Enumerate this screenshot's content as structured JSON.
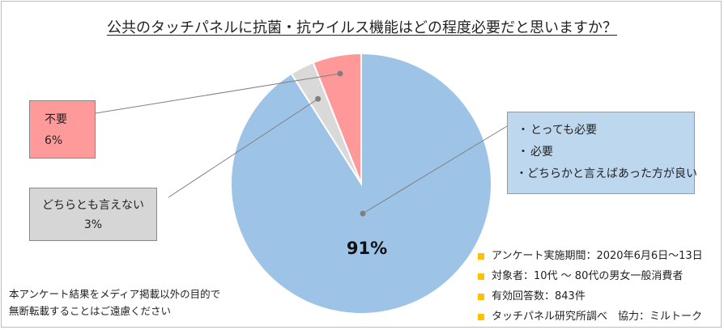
{
  "chart_data": {
    "type": "pie",
    "title": "公共のタッチパネルに抗菌・抗ウイルス機能はどの程度必要だと思いますか？",
    "slices": [
      {
        "key": "necessary",
        "value": 91,
        "value_label": "91%",
        "color": "#9dc3e6",
        "items": [
          "とっても必要",
          "必要",
          "どちらかと言えばあった方が良い"
        ]
      },
      {
        "key": "either",
        "value": 3,
        "label": "どちらとも言えない",
        "value_label": "3%",
        "color": "#d9d9d9"
      },
      {
        "key": "unnecessary",
        "value": 6,
        "label": "不要",
        "value_label": "6%",
        "color": "#ff9999"
      }
    ],
    "bullet_mark": "・"
  },
  "survey_info": [
    "アンケート実施期間：2020年6月6日～13日",
    "対象者：10代 ～ 80代の男女一般消費者",
    "有効回答数：843件",
    "タッチパネル研究所調べ　協力：ミルトーク"
  ],
  "disclaimer": [
    "本アンケート結果をメディア掲載以外の目的で",
    "無断転載することはご遠慮ください"
  ],
  "colors": {
    "accent_square": "#ffc000",
    "leader_line": "#7f7f7f",
    "slice_border": "#ffffff"
  }
}
